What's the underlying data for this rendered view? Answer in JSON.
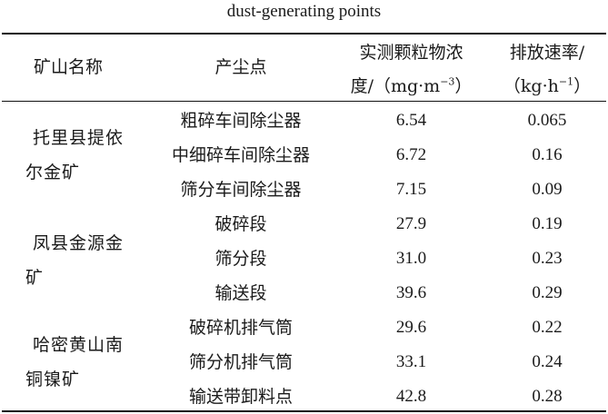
{
  "caption": "dust-generating points",
  "headers": {
    "mine_name": "矿山名称",
    "point": "产尘点",
    "concentration_line1": "实测颗粒物浓",
    "concentration_line2_prefix": "度/（mg·m",
    "concentration_line2_sup": "−3",
    "concentration_line2_suffix": "）",
    "rate_line1": "排放速率/",
    "rate_line2_prefix": "（kg·h",
    "rate_line2_sup": "−1",
    "rate_line2_suffix": "）"
  },
  "groups": [
    {
      "mine_line1": "托里县提依",
      "mine_line2": "尔金矿",
      "rows": [
        {
          "point": "粗碎车间除尘器",
          "concentration": "6.54",
          "rate": "0.065"
        },
        {
          "point": "中细碎车间除尘器",
          "concentration": "6.72",
          "rate": "0.16"
        },
        {
          "point": "筛分车间除尘器",
          "concentration": "7.15",
          "rate": "0.09"
        }
      ]
    },
    {
      "mine_line1": "凤县金源金",
      "mine_line2": "矿",
      "rows": [
        {
          "point": "破碎段",
          "concentration": "27.9",
          "rate": "0.19"
        },
        {
          "point": "筛分段",
          "concentration": "31.0",
          "rate": "0.23"
        },
        {
          "point": "输送段",
          "concentration": "39.6",
          "rate": "0.29"
        }
      ]
    },
    {
      "mine_line1": "哈密黄山南",
      "mine_line2": "铜镍矿",
      "rows": [
        {
          "point": "破碎机排气筒",
          "concentration": "29.6",
          "rate": "0.22"
        },
        {
          "point": "筛分机排气筒",
          "concentration": "33.1",
          "rate": "0.24"
        },
        {
          "point": "输送带卸料点",
          "concentration": "42.8",
          "rate": "0.28"
        }
      ]
    }
  ]
}
